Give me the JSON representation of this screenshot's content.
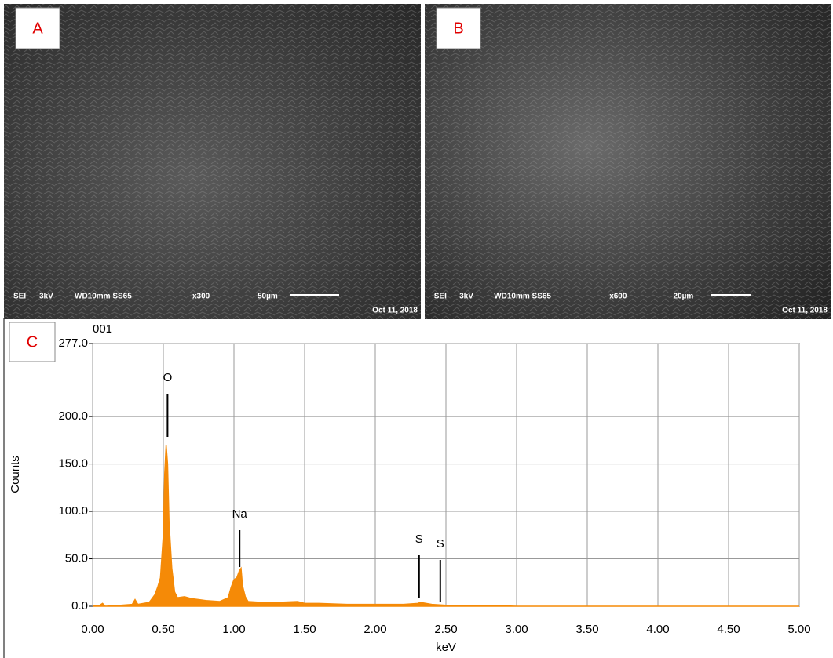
{
  "panels": [
    {
      "letter": "A",
      "info": [
        "SEI",
        "3kV",
        "WD10mm SS65",
        "x300",
        "50µm"
      ],
      "date": "Oct 11, 2018"
    },
    {
      "letter": "B",
      "info": [
        "SEI",
        "3kV",
        "WD10mm SS65",
        "x600",
        "20µm"
      ],
      "date": "Oct 11, 2018"
    }
  ],
  "chart_data": {
    "type": "area",
    "panel_letter": "C",
    "title": "001",
    "x_label": "keV",
    "y_label": "Counts",
    "color": "#f58a07",
    "grid": true,
    "x": [
      0,
      0.05,
      0.07,
      0.09,
      0.2,
      0.28,
      0.3,
      0.32,
      0.4,
      0.44,
      0.46,
      0.48,
      0.5,
      0.51,
      0.52,
      0.53,
      0.54,
      0.56,
      0.58,
      0.6,
      0.65,
      0.7,
      0.8,
      0.9,
      0.96,
      0.98,
      1.0,
      1.02,
      1.04,
      1.05,
      1.06,
      1.08,
      1.1,
      1.2,
      1.3,
      1.45,
      1.5,
      1.6,
      1.8,
      2.0,
      2.2,
      2.3,
      2.32,
      2.4,
      2.5,
      2.6,
      2.8,
      3.0,
      4.0,
      5.0
    ],
    "values": [
      0,
      1,
      3,
      0,
      1,
      2,
      7,
      2,
      4,
      12,
      20,
      30,
      75,
      140,
      170,
      150,
      90,
      40,
      15,
      9,
      10,
      8,
      6,
      5,
      9,
      20,
      28,
      30,
      38,
      40,
      22,
      10,
      5,
      4,
      4,
      5,
      3,
      3,
      2,
      2,
      2,
      3,
      4,
      2,
      1,
      1,
      1,
      0,
      0,
      0
    ],
    "xlim": [
      0,
      5
    ],
    "ylim": [
      0,
      277
    ],
    "xticks": [
      {
        "value": 0,
        "label": "0.00"
      },
      {
        "value": 0.5,
        "label": "0.50"
      },
      {
        "value": 1,
        "label": "1.00"
      },
      {
        "value": 1.5,
        "label": "1.50"
      },
      {
        "value": 2,
        "label": "2.00"
      },
      {
        "value": 2.5,
        "label": "2.50"
      },
      {
        "value": 3,
        "label": "3.00"
      },
      {
        "value": 3.5,
        "label": "3.50"
      },
      {
        "value": 4,
        "label": "4.00"
      },
      {
        "value": 4.5,
        "label": "4.50"
      },
      {
        "value": 5,
        "label": "5.00"
      }
    ],
    "yticks": [
      {
        "value": 0,
        "label": "0.0"
      },
      {
        "value": 50,
        "label": "50.0"
      },
      {
        "value": 100,
        "label": "100.0"
      },
      {
        "value": 150,
        "label": "150.0"
      },
      {
        "value": 200,
        "label": "200.0"
      },
      {
        "value": 277,
        "label": "277.0"
      }
    ],
    "peak_labels": [
      {
        "label": "O",
        "x": 0.53
      },
      {
        "label": "Na",
        "x": 1.04
      },
      {
        "label": "S",
        "x": 2.31
      },
      {
        "label": "S",
        "x": 2.46
      }
    ]
  }
}
